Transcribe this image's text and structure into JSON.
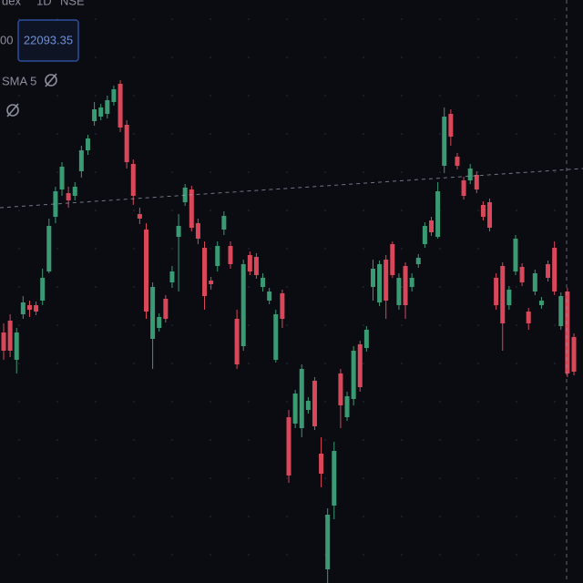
{
  "chart_data": {
    "type": "candlestick",
    "header": [
      "dex",
      "1D",
      "NSE"
    ],
    "legend_left": "00",
    "price_label": "22093.35",
    "indicator": "SMA 5",
    "up_color": "#3a9a74",
    "down_color": "#d9475a",
    "ylim": [
      21220,
      22500
    ],
    "open": [
      21770,
      21796,
      21710,
      21810,
      21830,
      21830,
      21840,
      21904,
      22024,
      22084,
      22076,
      22070,
      22124,
      22170,
      22234,
      22244,
      22250,
      22276,
      22316,
      22226,
      22140,
      22030,
      21996,
      21756,
      21780,
      21844,
      21880,
      21980,
      22056,
      22084,
      22010,
      21956,
      21884,
      21916,
      21996,
      21960,
      21800,
      21740,
      21940,
      21936,
      21870,
      21840,
      21710,
      21856,
      21584,
      21570,
      21560,
      21600,
      21664,
      21504,
      21250,
      21390,
      21680,
      21584,
      21624,
      21744,
      21736,
      21870,
      21836,
      21930,
      21964,
      21830,
      21916,
      21870,
      21920,
      21964,
      22016,
      21980,
      22136,
      22250,
      22156,
      22104,
      22104,
      22116,
      22050,
      22056,
      21890,
      21916,
      21830,
      21904,
      21914,
      21816,
      21860,
      21830,
      21920,
      21956,
      21784,
      21860,
      21760
    ],
    "high": [
      21790,
      21810,
      21780,
      21850,
      21840,
      21838,
      21910,
      22020,
      22090,
      22144,
      22090,
      22100,
      22180,
      22204,
      22276,
      22272,
      22290,
      22312,
      22324,
      22236,
      22150,
      22044,
      22010,
      21880,
      21812,
      21852,
      21916,
      22030,
      22096,
      22092,
      22020,
      21970,
      21892,
      21970,
      22036,
      21970,
      21820,
      21930,
      21948,
      21944,
      21900,
      21868,
      21820,
      21864,
      21600,
      21644,
      21700,
      21628,
      21672,
      21540,
      21384,
      21530,
      21690,
      21640,
      21740,
      21752,
      21784,
      21930,
      21928,
      21940,
      21970,
      21900,
      21924,
      21900,
      21942,
      22012,
      22024,
      22100,
      22264,
      22260,
      22164,
      22112,
      22140,
      22124,
      22058,
      22064,
      21900,
      21924,
      21872,
      21984,
      21922,
      21824,
      21908,
      21848,
      21928,
      21970,
      21858,
      21868,
      21768
    ],
    "low": [
      21710,
      21716,
      21680,
      21800,
      21804,
      21808,
      21830,
      21900,
      22010,
      22070,
      22044,
      22060,
      22110,
      22160,
      22224,
      22236,
      22240,
      22268,
      22210,
      22130,
      22050,
      22008,
      21800,
      21690,
      21772,
      21792,
      21868,
      21860,
      22048,
      21992,
      21964,
      21820,
      21864,
      21904,
      21984,
      21910,
      21690,
      21730,
      21896,
      21888,
      21860,
      21832,
      21704,
      21780,
      21440,
      21560,
      21540,
      21592,
      21556,
      21430,
      21220,
      21360,
      21560,
      21576,
      21610,
      21640,
      21728,
      21840,
      21828,
      21800,
      21890,
      21820,
      21800,
      21860,
      21912,
      21956,
      21982,
      21976,
      22120,
      22180,
      22128,
      22062,
      22096,
      22076,
      22016,
      21992,
      21820,
      21730,
      21820,
      21896,
      21872,
      21776,
      21852,
      21822,
      21882,
      21852,
      21776,
      21672,
      21676
    ],
    "close": [
      21730,
      21730,
      21770,
      21836,
      21820,
      21816,
      21890,
      22004,
      22080,
      22134,
      22060,
      22090,
      22170,
      22196,
      22260,
      22264,
      22280,
      22304,
      22220,
      22144,
      22070,
      22020,
      21816,
      21870,
      21804,
      21800,
      21904,
      22004,
      22088,
      22000,
      21976,
      21850,
      21876,
      21960,
      22026,
      21920,
      21700,
      21920,
      21904,
      21896,
      21890,
      21860,
      21810,
      21800,
      21456,
      21636,
      21690,
      21620,
      21564,
      21460,
      21370,
      21510,
      21610,
      21630,
      21730,
      21650,
      21776,
      21910,
      21920,
      21840,
      21896,
      21890,
      21830,
      21890,
      21934,
      22004,
      21990,
      22080,
      22244,
      22200,
      22136,
      22070,
      22130,
      22084,
      22024,
      22000,
      21830,
      21790,
      21864,
      21976,
      21880,
      21790,
      21900,
      21840,
      21890,
      21860,
      21850,
      21680,
      21684
    ]
  }
}
